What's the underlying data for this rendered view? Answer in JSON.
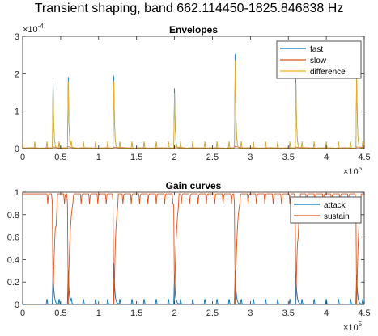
{
  "figure_title": "Transient shaping, band 662.114450-1825.846838 Hz",
  "chart_data": [
    {
      "type": "line",
      "title": "Envelopes",
      "xlabel": "",
      "ylabel": "",
      "xlim": [
        0,
        450000
      ],
      "ylim": [
        0,
        0.0003
      ],
      "x_ticks": [
        0,
        50000,
        100000,
        150000,
        200000,
        250000,
        300000,
        350000,
        400000,
        450000
      ],
      "x_tick_labels": [
        "0",
        "0.5",
        "1",
        "1.5",
        "2",
        "2.5",
        "3",
        "3.5",
        "4",
        "4.5"
      ],
      "y_ticks": [
        0,
        0.0001,
        0.0002,
        0.0003
      ],
      "y_tick_labels": [
        "0",
        "1",
        "2",
        "3"
      ],
      "x_exponent": "×10",
      "x_exponent_power": "5",
      "y_exponent": "×10",
      "y_exponent_power": "-4",
      "legend": "top-right",
      "grid": false,
      "transient_times": [
        40000,
        60000,
        120000,
        200000,
        280000,
        360000,
        440000
      ],
      "series": [
        {
          "name": "fast",
          "color": "#0072BD",
          "peaks": [
            0.000188,
            0.00019,
            0.000193,
            0.00016,
            0.000251,
            0.000185,
            0.000198
          ]
        },
        {
          "name": "slow",
          "color": "#D95319",
          "peaks": [
            3e-06,
            3e-06,
            3e-06,
            3e-06,
            4e-06,
            3e-06,
            3e-06
          ]
        },
        {
          "name": "difference",
          "color": "#EDB120",
          "peaks": [
            0.000176,
            0.000177,
            0.000179,
            0.000147,
            0.000235,
            0.000174,
            0.000187
          ]
        }
      ]
    },
    {
      "type": "line",
      "title": "Gain curves",
      "xlabel": "",
      "ylabel": "",
      "xlim": [
        0,
        450000
      ],
      "ylim": [
        0,
        1
      ],
      "x_ticks": [
        0,
        50000,
        100000,
        150000,
        200000,
        250000,
        300000,
        350000,
        400000,
        450000
      ],
      "x_tick_labels": [
        "0",
        "0.5",
        "1",
        "1.5",
        "2",
        "2.5",
        "3",
        "3.5",
        "4",
        "4.5"
      ],
      "y_ticks": [
        0,
        0.2,
        0.4,
        0.6,
        0.8,
        1
      ],
      "y_tick_labels": [
        "0",
        "0.2",
        "0.4",
        "0.6",
        "0.8",
        "1"
      ],
      "x_exponent": "×10",
      "x_exponent_power": "5",
      "legend": "top-right",
      "grid": false,
      "transient_times": [
        40000,
        60000,
        120000,
        200000,
        280000,
        360000,
        440000
      ],
      "series": [
        {
          "name": "attack",
          "color": "#0072BD",
          "peaks": [
            0.33,
            0.3,
            0.36,
            0.26,
            0.3,
            0.28,
            0.26
          ]
        },
        {
          "name": "sustain",
          "color": "#D95319",
          "troughs": [
            0.0,
            0.0,
            0.0,
            0.0,
            0.0,
            0.0,
            0.0
          ]
        }
      ]
    }
  ]
}
